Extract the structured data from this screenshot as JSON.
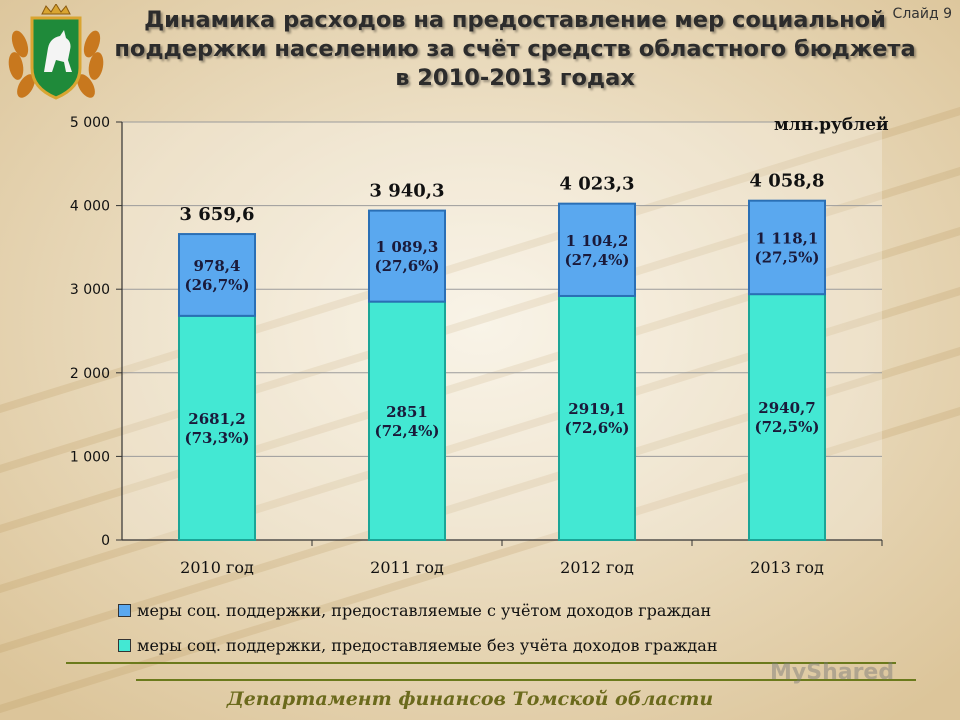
{
  "header": {
    "title_lines": [
      "Динамика расходов на предоставление мер социальной",
      "поддержки населению за счёт средств областного бюджета",
      "в 2010-2013 годах"
    ],
    "slide_label": "Слайд 9"
  },
  "units_label": "млн.рублей",
  "legend": {
    "income_based": "меры соц. поддержки, предоставляемые с учётом доходов граждан",
    "non_income": "меры соц. поддержки, предоставляемые без учёта доходов граждан"
  },
  "footer": "Департамент финансов Томской области",
  "watermark": "MyShared",
  "colors": {
    "income_based": "#5aa8ef",
    "non_income": "#43e8d3",
    "footer": "#6b6a1c",
    "rule": "#6b7a1c"
  },
  "chart_data": {
    "type": "bar",
    "stacked": true,
    "categories": [
      "2010 год",
      "2011 год",
      "2012 год",
      "2013 год"
    ],
    "series": [
      {
        "name": "меры соц. поддержки, предоставляемые без учёта доходов граждан",
        "values": [
          2681.2,
          2851,
          2919.1,
          2940.7
        ],
        "labels": [
          [
            "2681,2",
            "(73,3%)"
          ],
          [
            "2851",
            "(72,4%)"
          ],
          [
            "2919,1",
            "(72,6%)"
          ],
          [
            "2940,7",
            "(72,5%)"
          ]
        ]
      },
      {
        "name": "меры соц. поддержки, предоставляемые с учётом доходов граждан",
        "values": [
          978.4,
          1089.3,
          1104.2,
          1118.1
        ],
        "labels": [
          [
            "978,4",
            "(26,7%)"
          ],
          [
            "1 089,3",
            "(27,6%)"
          ],
          [
            "1 104,2",
            "(27,4%)"
          ],
          [
            "1 118,1",
            "(27,5%)"
          ]
        ]
      }
    ],
    "totals": [
      3659.6,
      3940.3,
      4023.3,
      4058.8
    ],
    "total_labels": [
      "3 659,6",
      "3 940,3",
      "4 023,3",
      "4 058,8"
    ],
    "yticks": [
      "0",
      "1 000",
      "2 000",
      "3 000",
      "4 000",
      "5 000"
    ],
    "ylim": [
      0,
      5000
    ],
    "grid": true,
    "legend_position": "bottom"
  }
}
